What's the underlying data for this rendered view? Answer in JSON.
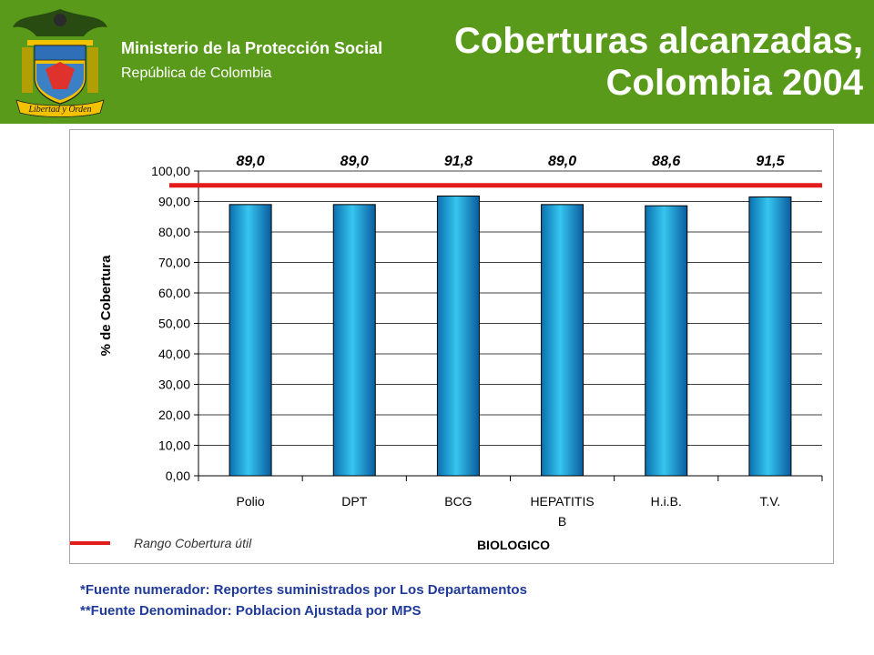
{
  "header": {
    "ministry": "Ministerio de la Protección Social",
    "republic": "República de Colombia",
    "title_line1": "Coberturas alcanzadas,",
    "title_line2": "Colombia 2004",
    "emblem_motto": "Libertad y Orden",
    "background_color": "#5a9a1a"
  },
  "chart_data": {
    "type": "bar",
    "categories": [
      "Polio",
      "DPT",
      "BCG",
      "HEPATITIS B",
      "H.i.B.",
      "T.V."
    ],
    "category_lines": [
      [
        "Polio"
      ],
      [
        "DPT"
      ],
      [
        "BCG"
      ],
      [
        "HEPATITIS",
        "B"
      ],
      [
        "H.i.B."
      ],
      [
        "T.V."
      ]
    ],
    "values": [
      89.0,
      89.0,
      91.8,
      89.0,
      88.6,
      91.5
    ],
    "value_labels": [
      "89,0",
      "89,0",
      "91,8",
      "89,0",
      "88,6",
      "91,5"
    ],
    "xlabel": "BIOLOGICO",
    "ylabel": "% de Cobertura",
    "ylim": [
      0,
      100
    ],
    "yticks": [
      "0,00",
      "10,00",
      "20,00",
      "30,00",
      "40,00",
      "50,00",
      "60,00",
      "70,00",
      "80,00",
      "90,00",
      "100,00"
    ],
    "grid": true,
    "reference_line": {
      "value": 95,
      "label": "Rango Cobertura útil",
      "color": "#e21b1b"
    },
    "bar_color": "#1aa9d6",
    "legend_position": "bottom-left"
  },
  "footnotes": {
    "numerator": "*Fuente numerador: Reportes suministrados por Los Departamentos",
    "denominator": "**Fuente Denominador: Poblacion Ajustada por MPS"
  }
}
